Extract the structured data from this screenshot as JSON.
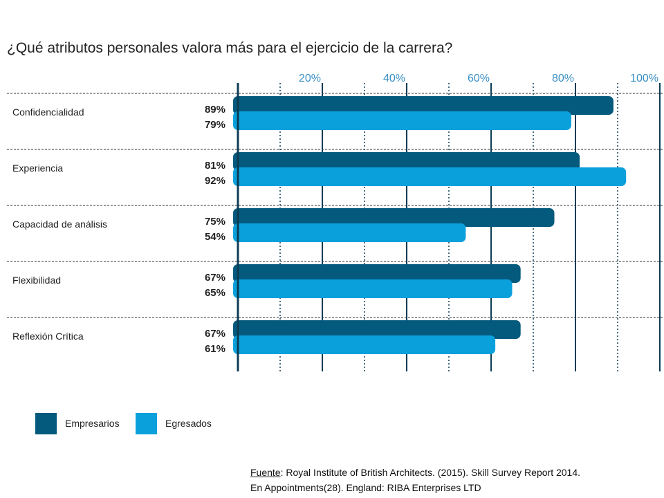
{
  "chart_data": {
    "type": "bar",
    "orientation": "horizontal",
    "title": "¿Qué atributos personales valora más para el ejercicio de la carrera?",
    "categories": [
      "Confidencialidad",
      "Experiencia",
      "Capacidad de análisis",
      "Flexibilidad",
      "Reflexión Crítica"
    ],
    "series": [
      {
        "name": "Empresarios",
        "values": [
          89,
          81,
          75,
          67,
          67
        ],
        "labels": [
          "89%",
          "81%",
          "75%",
          "67%",
          "67%"
        ],
        "color": "#045a7d"
      },
      {
        "name": "Egresados",
        "values": [
          79,
          92,
          54,
          65,
          61
        ],
        "labels": [
          "79%",
          "92%",
          "54%",
          "65%",
          "61%"
        ],
        "color": "#0aa0dc"
      }
    ],
    "xlim": [
      0,
      100
    ],
    "ticks": [
      20,
      40,
      60,
      80,
      100
    ],
    "tick_labels": [
      "20%",
      "40%",
      "60%",
      "80%",
      "100%"
    ],
    "grid": true,
    "legend_position": "bottom-left"
  },
  "source": {
    "label": "Fuente",
    "text": ": Royal Institute of British Architects. (2015). Skill Survey Report 2014.",
    "line2": "En Appointments(28). England: RIBA Enterprises LTD"
  }
}
